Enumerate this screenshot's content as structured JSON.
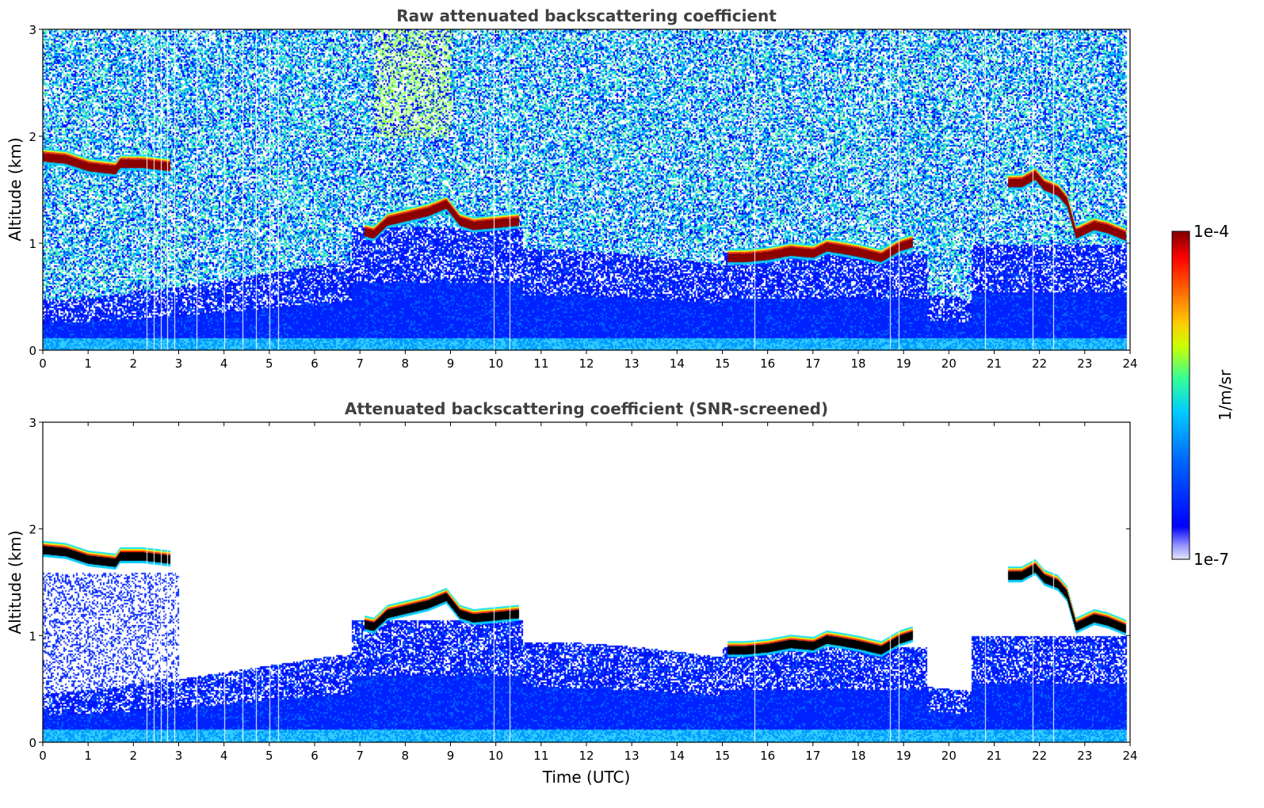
{
  "chart_data": [
    {
      "type": "heatmap",
      "title": "Raw attenuated backscattering coefficient",
      "xlabel": "",
      "ylabel": "Altitude (km)",
      "xlim": [
        0,
        24
      ],
      "ylim": [
        0,
        3
      ],
      "xticks": [
        "0",
        "1",
        "2",
        "3",
        "4",
        "5",
        "6",
        "7",
        "8",
        "9",
        "10",
        "11",
        "12",
        "13",
        "14",
        "15",
        "16",
        "17",
        "18",
        "19",
        "20",
        "21",
        "22",
        "23",
        "24"
      ],
      "yticks": [
        "0",
        "1",
        "2",
        "3"
      ],
      "screened": false,
      "cloud_layers": [
        {
          "t": [
            0.0,
            0.5,
            1.0,
            1.6,
            1.7,
            2.2,
            2.8
          ],
          "alt": [
            1.82,
            1.8,
            1.73,
            1.7,
            1.76,
            1.76,
            1.73
          ]
        },
        {
          "t": [
            7.1,
            7.3,
            7.6,
            8.0,
            8.5,
            8.9,
            9.2,
            9.5,
            10.0,
            10.5
          ],
          "alt": [
            1.12,
            1.1,
            1.22,
            1.26,
            1.31,
            1.38,
            1.22,
            1.18,
            1.2,
            1.22
          ]
        },
        {
          "t": [
            15.1,
            15.5,
            16.0,
            16.5,
            17.0,
            17.3,
            17.6,
            18.0,
            18.5,
            18.9,
            19.2
          ],
          "alt": [
            0.88,
            0.88,
            0.9,
            0.94,
            0.92,
            0.98,
            0.96,
            0.93,
            0.88,
            0.98,
            1.02
          ]
        },
        {
          "t": [
            21.3,
            21.6,
            21.9,
            22.1,
            22.4,
            22.6,
            22.8,
            23.2,
            23.5,
            23.9
          ],
          "alt": [
            1.58,
            1.58,
            1.65,
            1.55,
            1.5,
            1.4,
            1.1,
            1.18,
            1.15,
            1.08
          ]
        }
      ]
    },
    {
      "type": "heatmap",
      "title": "Attenuated backscattering coefficient (SNR-screened)",
      "xlabel": "Time (UTC)",
      "ylabel": "Altitude (km)",
      "xlim": [
        0,
        24
      ],
      "ylim": [
        0,
        3
      ],
      "xticks": [
        "0",
        "1",
        "2",
        "3",
        "4",
        "5",
        "6",
        "7",
        "8",
        "9",
        "10",
        "11",
        "12",
        "13",
        "14",
        "15",
        "16",
        "17",
        "18",
        "19",
        "20",
        "21",
        "22",
        "23",
        "24"
      ],
      "yticks": [
        "0",
        "1",
        "2",
        "3"
      ],
      "screened": true,
      "cloud_layers": [
        {
          "t": [
            0.0,
            0.5,
            1.0,
            1.6,
            1.7,
            2.2,
            2.8
          ],
          "alt": [
            1.82,
            1.8,
            1.73,
            1.7,
            1.76,
            1.76,
            1.73
          ]
        },
        {
          "t": [
            7.1,
            7.3,
            7.6,
            8.0,
            8.5,
            8.9,
            9.2,
            9.5,
            10.0,
            10.5
          ],
          "alt": [
            1.12,
            1.1,
            1.22,
            1.26,
            1.31,
            1.38,
            1.22,
            1.18,
            1.2,
            1.22
          ]
        },
        {
          "t": [
            15.1,
            15.5,
            16.0,
            16.5,
            17.0,
            17.3,
            17.6,
            18.0,
            18.5,
            18.9,
            19.2
          ],
          "alt": [
            0.88,
            0.88,
            0.9,
            0.94,
            0.92,
            0.98,
            0.96,
            0.93,
            0.88,
            0.98,
            1.02
          ]
        },
        {
          "t": [
            21.3,
            21.6,
            21.9,
            22.1,
            22.4,
            22.6,
            22.8,
            23.2,
            23.5,
            23.9
          ],
          "alt": [
            1.58,
            1.58,
            1.65,
            1.55,
            1.5,
            1.4,
            1.1,
            1.18,
            1.15,
            1.08
          ]
        }
      ]
    }
  ],
  "colorbar": {
    "label": "1/m/sr",
    "max_label": "1e-4",
    "min_label": "1e-7",
    "colors": [
      "#7f0000",
      "#ff0000",
      "#ff8000",
      "#ffff00",
      "#80ff80",
      "#00ffff",
      "#0080ff",
      "#0000ff",
      "#9999ff",
      "#e6e6ff"
    ]
  }
}
